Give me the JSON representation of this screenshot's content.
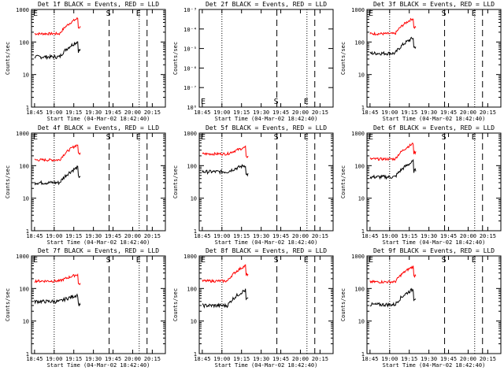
{
  "panels": [
    {
      "title": "Det 1f BLACK = Events, RED = LLD",
      "yscale": "counts",
      "lld_level": 180,
      "evt_level": 35,
      "peak_shape": "rise"
    },
    {
      "title": "Det 2f BLACK = Events, RED = LLD",
      "yscale": "sci",
      "empty": true
    },
    {
      "title": "Det 3f BLACK = Events, RED = LLD",
      "yscale": "counts",
      "lld_level": 180,
      "evt_level": 45,
      "peak_shape": "rise"
    },
    {
      "title": "Det 4f BLACK = Events, RED = LLD",
      "yscale": "counts",
      "lld_level": 150,
      "evt_level": 30,
      "peak_shape": "rise"
    },
    {
      "title": "Det 5f BLACK = Events, RED = LLD",
      "yscale": "counts",
      "lld_level": 230,
      "evt_level": 65,
      "peak_shape": "flat"
    },
    {
      "title": "Det 6f BLACK = Events, RED = LLD",
      "yscale": "counts",
      "lld_level": 160,
      "evt_level": 45,
      "peak_shape": "rise"
    },
    {
      "title": "Det 7f BLACK = Events, RED = LLD",
      "yscale": "counts",
      "lld_level": 170,
      "evt_level": 40,
      "peak_shape": "flat"
    },
    {
      "title": "Det 8f BLACK = Events, RED = LLD",
      "yscale": "counts",
      "lld_level": 170,
      "evt_level": 30,
      "peak_shape": "rise"
    },
    {
      "title": "Det 9f BLACK = Events, RED = LLD",
      "yscale": "counts",
      "lld_level": 160,
      "evt_level": 32,
      "peak_shape": "rise"
    }
  ],
  "axes": {
    "ylabel": "Counts/sec",
    "xlabel": "Start Time (04-Mar-02 18:42:40)",
    "xticks": [
      "18:45",
      "19:00",
      "19:15",
      "19:30",
      "19:45",
      "20:00",
      "20:15"
    ],
    "yticks_counts": [
      "1",
      "10",
      "100",
      "1000"
    ],
    "yticks_sci": [
      "10⁻³",
      "10⁻⁴",
      "10⁻⁵",
      "10⁻⁶",
      "10⁻⁷",
      "10⁰"
    ]
  },
  "markers": {
    "E": "E",
    "S": "S"
  },
  "chart_data": {
    "type": "line",
    "x_unit": "UT time",
    "y_scale": "log",
    "ylim": [
      1,
      1000
    ],
    "xlim": [
      "18:42:40",
      "20:25"
    ],
    "vertical_lines": {
      "dotted": [
        "19:00",
        "20:05"
      ],
      "dashed": [
        "19:42",
        "20:11"
      ]
    },
    "series": [
      {
        "name": "BLACK = Events",
        "color": "#000000"
      },
      {
        "name": "RED = LLD",
        "color": "#ff0000"
      }
    ],
    "data_time_range": [
      "18:45",
      "19:20"
    ]
  }
}
